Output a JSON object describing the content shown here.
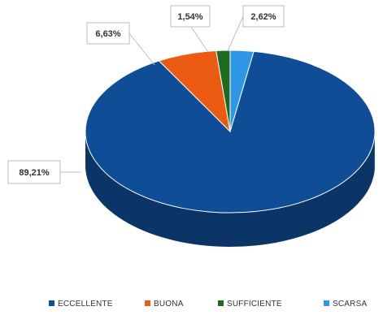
{
  "chart_data": {
    "type": "pie",
    "style": "3d",
    "title": "",
    "legend_position": "bottom",
    "categories": [
      "ECCELLENTE",
      "BUONA",
      "SUFFICIENTE",
      "SCARSA"
    ],
    "values": [
      89.21,
      6.63,
      1.54,
      2.62
    ],
    "labels": [
      "89,21%",
      "6,63%",
      "1,54%",
      "2,62%"
    ],
    "colors": [
      "#0f4d96",
      "#ec5b13",
      "#1e6a21",
      "#2f97e6"
    ],
    "side_colors": [
      "#0b3566",
      "#a84210",
      "#124514",
      "#1f6aa3"
    ]
  }
}
